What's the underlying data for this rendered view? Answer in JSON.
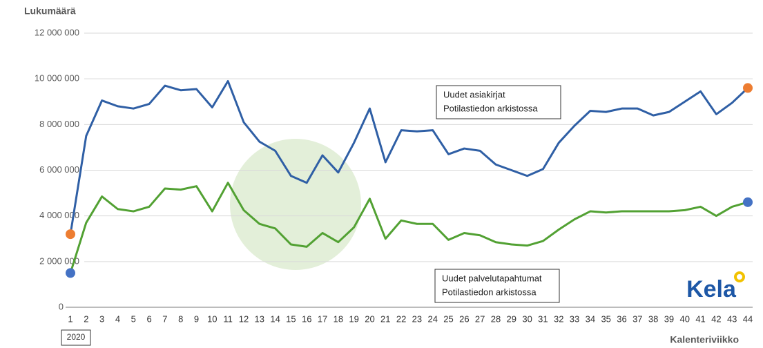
{
  "chart_data": {
    "type": "line",
    "y_axis_label": "Lukumäärä",
    "x_axis_label": "Kalenteriviikko",
    "year_label": "2020",
    "logo": "Kela",
    "categories": [
      "1",
      "2",
      "3",
      "4",
      "5",
      "6",
      "7",
      "8",
      "9",
      "10",
      "11",
      "12",
      "13",
      "14",
      "15",
      "16",
      "17",
      "18",
      "19",
      "20",
      "21",
      "22",
      "23",
      "24",
      "25",
      "26",
      "27",
      "28",
      "29",
      "30",
      "31",
      "32",
      "33",
      "34",
      "35",
      "36",
      "37",
      "38",
      "39",
      "40",
      "41",
      "42",
      "43",
      "44"
    ],
    "series": [
      {
        "color": "#2f5fa5",
        "marker_color": "#ed7d31",
        "values": [
          3200000,
          7500000,
          9050000,
          8800000,
          8700000,
          8900000,
          9700000,
          9500000,
          9550000,
          8750000,
          9900000,
          8100000,
          7250000,
          6850000,
          5750000,
          5450000,
          6650000,
          5900000,
          7200000,
          8700000,
          6350000,
          7750000,
          7700000,
          7750000,
          6700000,
          6950000,
          6850000,
          6250000,
          6000000,
          5750000,
          6050000,
          7200000,
          7950000,
          8600000,
          8550000,
          8700000,
          8700000,
          8400000,
          8550000,
          9000000,
          9450000,
          8450000,
          8950000,
          9600000
        ]
      },
      {
        "color": "#52a133",
        "marker_color": "#4472c4",
        "values": [
          1500000,
          3700000,
          4850000,
          4300000,
          4200000,
          4400000,
          5200000,
          5150000,
          5300000,
          4200000,
          5450000,
          4250000,
          3650000,
          3450000,
          2750000,
          2650000,
          3250000,
          2850000,
          3500000,
          4750000,
          3000000,
          3800000,
          3650000,
          3650000,
          2950000,
          3250000,
          3150000,
          2850000,
          2750000,
          2700000,
          2900000,
          3400000,
          3850000,
          4200000,
          4150000,
          4200000,
          4200000,
          4200000,
          4200000,
          4250000,
          4400000,
          4000000,
          4400000,
          4600000
        ]
      }
    ],
    "annotations": [
      {
        "series": 0,
        "lines": [
          "Uudet asiakirjat",
          "Potilastiedon arkistossa"
        ]
      },
      {
        "series": 1,
        "lines": [
          "Uudet palvelutapahtumat",
          "Potilastiedon arkistossa"
        ]
      }
    ],
    "ylim": [
      0,
      12000000
    ],
    "yticks": [
      0,
      {
        "value": 2000000,
        "label": "2 000 000"
      },
      {
        "value": 4000000,
        "label": "4 000 000"
      },
      {
        "value": 6000000,
        "label": "6 000 000"
      },
      {
        "value": 8000000,
        "label": "8 000 000"
      },
      {
        "value": 10000000,
        "label": "10 000 000"
      },
      {
        "value": 12000000,
        "label": "12 000 000"
      }
    ],
    "grid": true
  }
}
